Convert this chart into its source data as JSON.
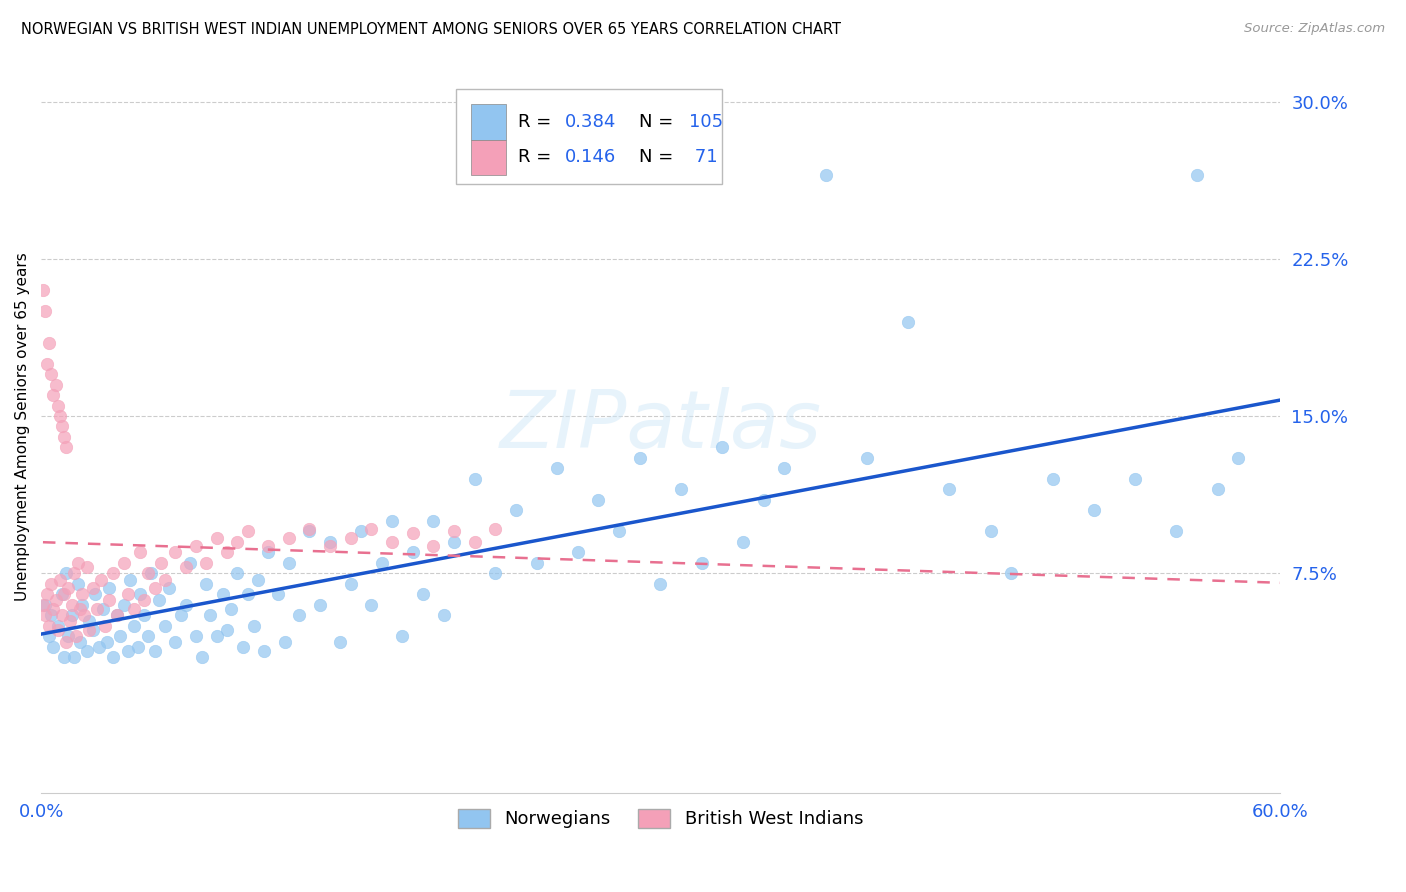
{
  "title": "NORWEGIAN VS BRITISH WEST INDIAN UNEMPLOYMENT AMONG SENIORS OVER 65 YEARS CORRELATION CHART",
  "source": "Source: ZipAtlas.com",
  "ylabel": "Unemployment Among Seniors over 65 years",
  "xlim": [
    0.0,
    0.6
  ],
  "ylim": [
    -0.03,
    0.32
  ],
  "yticks": [
    0.075,
    0.15,
    0.225,
    0.3
  ],
  "ytick_labels": [
    "7.5%",
    "15.0%",
    "22.5%",
    "30.0%"
  ],
  "xtick_labels": [
    "0.0%",
    "60.0%"
  ],
  "blue_color": "#92C5F0",
  "pink_color": "#F4A0B8",
  "trend_blue": "#1A56CC",
  "trend_pink_dash": "#E87090",
  "watermark": "ZIPatlas",
  "R_norwegian": 0.384,
  "N_norwegian": 105,
  "R_british": 0.146,
  "N_british": 71,
  "nor_x": [
    0.002,
    0.004,
    0.005,
    0.006,
    0.008,
    0.01,
    0.011,
    0.012,
    0.013,
    0.015,
    0.016,
    0.018,
    0.019,
    0.02,
    0.022,
    0.023,
    0.025,
    0.026,
    0.028,
    0.03,
    0.032,
    0.033,
    0.035,
    0.037,
    0.038,
    0.04,
    0.042,
    0.043,
    0.045,
    0.047,
    0.048,
    0.05,
    0.052,
    0.053,
    0.055,
    0.057,
    0.06,
    0.062,
    0.065,
    0.068,
    0.07,
    0.072,
    0.075,
    0.078,
    0.08,
    0.082,
    0.085,
    0.088,
    0.09,
    0.092,
    0.095,
    0.098,
    0.1,
    0.103,
    0.105,
    0.108,
    0.11,
    0.115,
    0.118,
    0.12,
    0.125,
    0.13,
    0.135,
    0.14,
    0.145,
    0.15,
    0.155,
    0.16,
    0.165,
    0.17,
    0.175,
    0.18,
    0.185,
    0.19,
    0.195,
    0.2,
    0.21,
    0.22,
    0.23,
    0.24,
    0.25,
    0.26,
    0.27,
    0.28,
    0.29,
    0.3,
    0.31,
    0.32,
    0.33,
    0.34,
    0.35,
    0.36,
    0.38,
    0.4,
    0.42,
    0.44,
    0.46,
    0.47,
    0.49,
    0.51,
    0.53,
    0.55,
    0.56,
    0.57,
    0.58
  ],
  "nor_y": [
    0.06,
    0.045,
    0.055,
    0.04,
    0.05,
    0.065,
    0.035,
    0.075,
    0.045,
    0.055,
    0.035,
    0.07,
    0.042,
    0.06,
    0.038,
    0.052,
    0.048,
    0.065,
    0.04,
    0.058,
    0.042,
    0.068,
    0.035,
    0.055,
    0.045,
    0.06,
    0.038,
    0.072,
    0.05,
    0.04,
    0.065,
    0.055,
    0.045,
    0.075,
    0.038,
    0.062,
    0.05,
    0.068,
    0.042,
    0.055,
    0.06,
    0.08,
    0.045,
    0.035,
    0.07,
    0.055,
    0.045,
    0.065,
    0.048,
    0.058,
    0.075,
    0.04,
    0.065,
    0.05,
    0.072,
    0.038,
    0.085,
    0.065,
    0.042,
    0.08,
    0.055,
    0.095,
    0.06,
    0.09,
    0.042,
    0.07,
    0.095,
    0.06,
    0.08,
    0.1,
    0.045,
    0.085,
    0.065,
    0.1,
    0.055,
    0.09,
    0.12,
    0.075,
    0.105,
    0.08,
    0.125,
    0.085,
    0.11,
    0.095,
    0.13,
    0.07,
    0.115,
    0.08,
    0.135,
    0.09,
    0.11,
    0.125,
    0.265,
    0.13,
    0.195,
    0.115,
    0.095,
    0.075,
    0.12,
    0.105,
    0.12,
    0.095,
    0.265,
    0.115,
    0.13
  ],
  "brit_x": [
    0.001,
    0.002,
    0.003,
    0.004,
    0.005,
    0.006,
    0.007,
    0.008,
    0.009,
    0.01,
    0.011,
    0.012,
    0.013,
    0.014,
    0.015,
    0.016,
    0.017,
    0.018,
    0.019,
    0.02,
    0.021,
    0.022,
    0.023,
    0.025,
    0.027,
    0.029,
    0.031,
    0.033,
    0.035,
    0.037,
    0.04,
    0.042,
    0.045,
    0.048,
    0.05,
    0.052,
    0.055,
    0.058,
    0.06,
    0.065,
    0.07,
    0.075,
    0.08,
    0.085,
    0.09,
    0.095,
    0.1,
    0.11,
    0.12,
    0.13,
    0.14,
    0.15,
    0.16,
    0.17,
    0.18,
    0.19,
    0.2,
    0.21,
    0.22,
    0.001,
    0.002,
    0.003,
    0.004,
    0.005,
    0.006,
    0.007,
    0.008,
    0.009,
    0.01,
    0.011,
    0.012
  ],
  "brit_y": [
    0.06,
    0.055,
    0.065,
    0.05,
    0.07,
    0.058,
    0.062,
    0.048,
    0.072,
    0.055,
    0.065,
    0.042,
    0.068,
    0.052,
    0.06,
    0.075,
    0.045,
    0.08,
    0.058,
    0.065,
    0.055,
    0.078,
    0.048,
    0.068,
    0.058,
    0.072,
    0.05,
    0.062,
    0.075,
    0.055,
    0.08,
    0.065,
    0.058,
    0.085,
    0.062,
    0.075,
    0.068,
    0.08,
    0.072,
    0.085,
    0.078,
    0.088,
    0.08,
    0.092,
    0.085,
    0.09,
    0.095,
    0.088,
    0.092,
    0.096,
    0.088,
    0.092,
    0.096,
    0.09,
    0.094,
    0.088,
    0.095,
    0.09,
    0.096,
    0.21,
    0.2,
    0.175,
    0.185,
    0.17,
    0.16,
    0.165,
    0.155,
    0.15,
    0.145,
    0.14,
    0.135
  ]
}
